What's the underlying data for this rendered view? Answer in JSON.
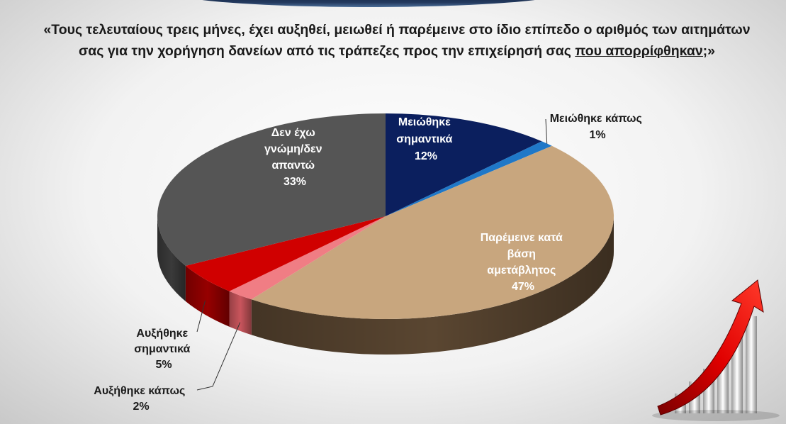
{
  "title": {
    "main": "«Τους τελευταίους τρεις μήνες, έχει αυξηθεί, μειωθεί ή παρέμεινε στο ίδιο επίπεδο ο αριθμός των αιτημάτων σας για την χορήγηση δανείων από τις τράπεζες προς την επιχείρησή σας",
    "underlined": "που απορρίφθηκαν;",
    "closing": "»"
  },
  "chart_data": {
    "type": "pie",
    "title": "«Τους τελευταίους τρεις μήνες, έχει αυξηθεί, μειωθεί ή παρέμεινε στο ίδιο επίπεδο ο αριθμός των αιτημάτων σας για την χορήγηση δανείων από τις τράπεζες προς την επιχείρησή σας που απορρίφθηκαν;»",
    "slices": [
      {
        "label": "Μειώθηκε σημαντικά",
        "value": 12,
        "value_label": "12%",
        "color": "#0b1f5e",
        "side_color": "#06123a",
        "label_color": "#ffffff"
      },
      {
        "label": "Μειώθηκε κάπως",
        "value": 1,
        "value_label": "1%",
        "color": "#1f78c8",
        "side_color": "#12548f",
        "label_color": "#1a1a1a"
      },
      {
        "label": "Παρέμεινε κατά βάση αμετάβλητος",
        "value": 47,
        "value_label": "47%",
        "color": "#c8a67e",
        "side_color": "#5a4631",
        "label_color": "#ffffff"
      },
      {
        "label": "Αυξήθηκε κάπως",
        "value": 2,
        "value_label": "2%",
        "color": "#f07d84",
        "side_color": "#c9555c",
        "label_color": "#1a1a1a"
      },
      {
        "label": "Αυξήθηκε σημαντικά",
        "value": 5,
        "value_label": "5%",
        "color": "#d00000",
        "side_color": "#960000",
        "label_color": "#1a1a1a"
      },
      {
        "label": "Δεν έχω γνώμη/δεν απαντώ",
        "value": 33,
        "value_label": "33%",
        "color": "#555555",
        "side_color": "#3a3a3a",
        "label_color": "#ffffff"
      }
    ],
    "legend": "none"
  },
  "labels": {
    "meiothike_simantika": [
      "Μειώθηκε",
      "σημαντικά",
      "12%"
    ],
    "meiothike_kapos": [
      "Μειώθηκε κάπως",
      "1%"
    ],
    "paremeine": [
      "Παρέμεινε κατά",
      "βάση",
      "αμετάβλητος",
      "47%"
    ],
    "afxithike_simantika": [
      "Αυξήθηκε",
      "σημαντικά",
      "5%"
    ],
    "afxithike_kapos": [
      "Αυξήθηκε κάπως",
      "2%"
    ],
    "den_exo_gnomi": [
      "Δεν έχω",
      "γνώμη/δεν",
      "απαντώ",
      "33%"
    ]
  },
  "icons": {
    "decoration": "growth-arrow-bars-icon"
  }
}
